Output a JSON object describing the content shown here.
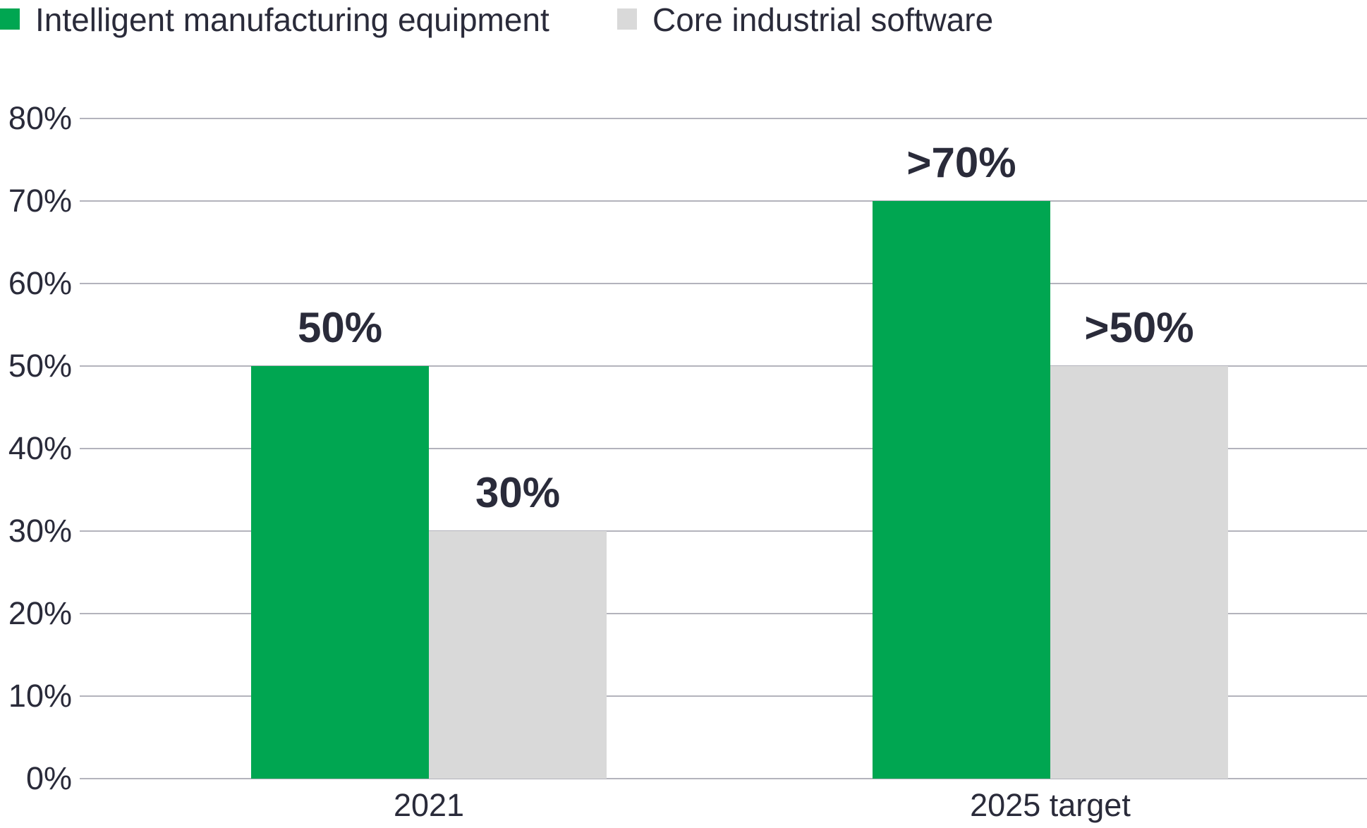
{
  "chart_data": {
    "type": "bar",
    "categories": [
      "2021",
      "2025 target"
    ],
    "series": [
      {
        "name": "Intelligent manufacturing equipment",
        "values": [
          50,
          70
        ],
        "labels": [
          "50%",
          ">70%"
        ],
        "color": "#00a651"
      },
      {
        "name": "Core industrial software",
        "values": [
          30,
          50
        ],
        "labels": [
          "30%",
          ">50%"
        ],
        "color": "#d9d9d9"
      }
    ],
    "ylim": [
      0,
      80
    ],
    "yticks": [
      "0%",
      "10%",
      "20%",
      "30%",
      "40%",
      "50%",
      "60%",
      "70%",
      "80%"
    ],
    "grid": true,
    "legend_position": "top-left"
  }
}
